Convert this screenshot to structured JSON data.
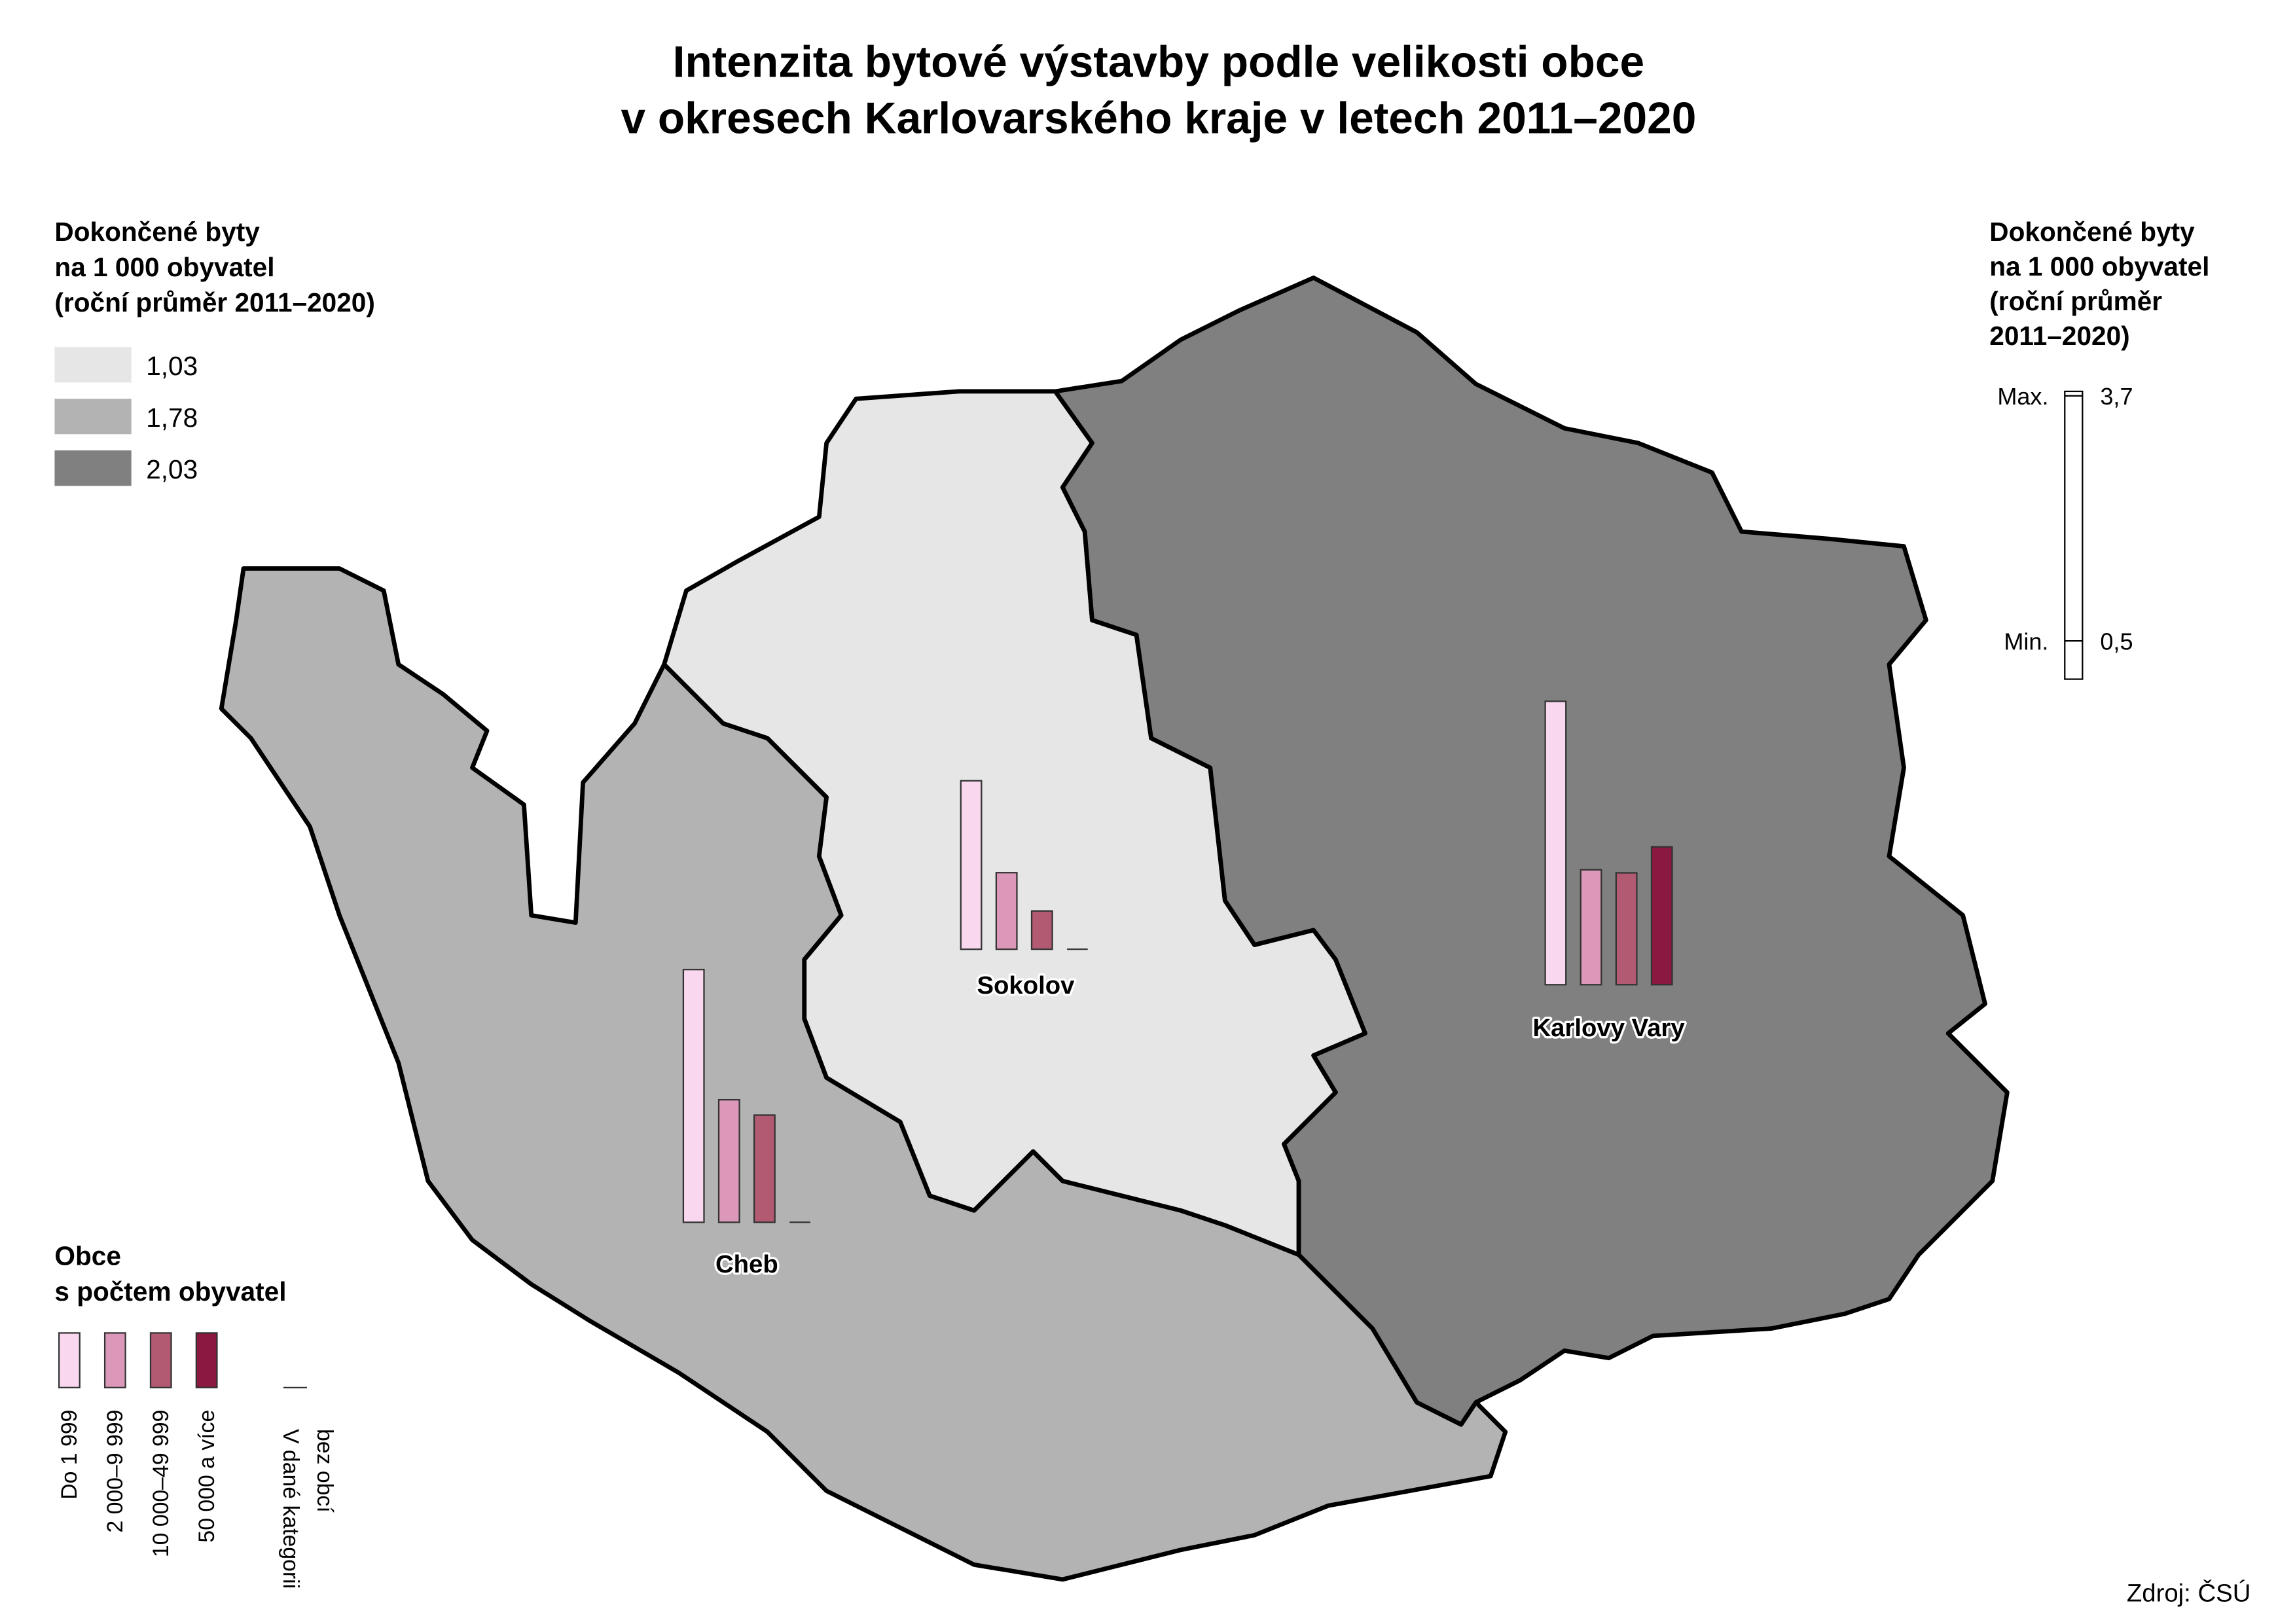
{
  "title_lines": [
    "Intenzita bytové výstavby podle velikosti obce",
    "v okresech Karlovarského kraje v letech 2011–2020"
  ],
  "choropleth_legend": {
    "title_lines": [
      "Dokončené byty",
      "na 1 000 obyvatel",
      "(roční průměr 2011–2020)"
    ],
    "classes": [
      {
        "label": "1,03",
        "color": "#e6e6e6"
      },
      {
        "label": "1,78",
        "color": "#b3b3b3"
      },
      {
        "label": "2,03",
        "color": "#808080"
      }
    ]
  },
  "scale_legend": {
    "title_lines": [
      "Dokončené byty",
      "na 1 000 obyvatel",
      "(roční průměr",
      "2011–2020)"
    ],
    "max_label": "Max.",
    "max": {
      "value": 3.7,
      "label": "3,7"
    },
    "min_label": "Min.",
    "min": {
      "value": 0.5,
      "label": "0,5"
    }
  },
  "bar_legend": {
    "title_lines": [
      "Obce",
      "s počtem obyvatel"
    ],
    "categories": [
      "Do 1 999",
      "2 000–9 999",
      "10 000–49 999",
      "50 000 a více"
    ],
    "colors": [
      "#f9d7ef",
      "#dc98b9",
      "#b25a72",
      "#8a1840"
    ],
    "empty_label_lines": [
      "V dané kategorii",
      "bez obcí"
    ]
  },
  "districts": [
    {
      "name": "Cheb",
      "values": [
        3.3,
        1.6,
        1.4,
        null
      ]
    },
    {
      "name": "Sokolov",
      "values": [
        2.2,
        1.0,
        0.5,
        null
      ]
    },
    {
      "name": "Karlovy Vary",
      "values": [
        3.7,
        1.5,
        1.46,
        1.8
      ]
    }
  ],
  "source": "Zdroj: ČSÚ"
}
